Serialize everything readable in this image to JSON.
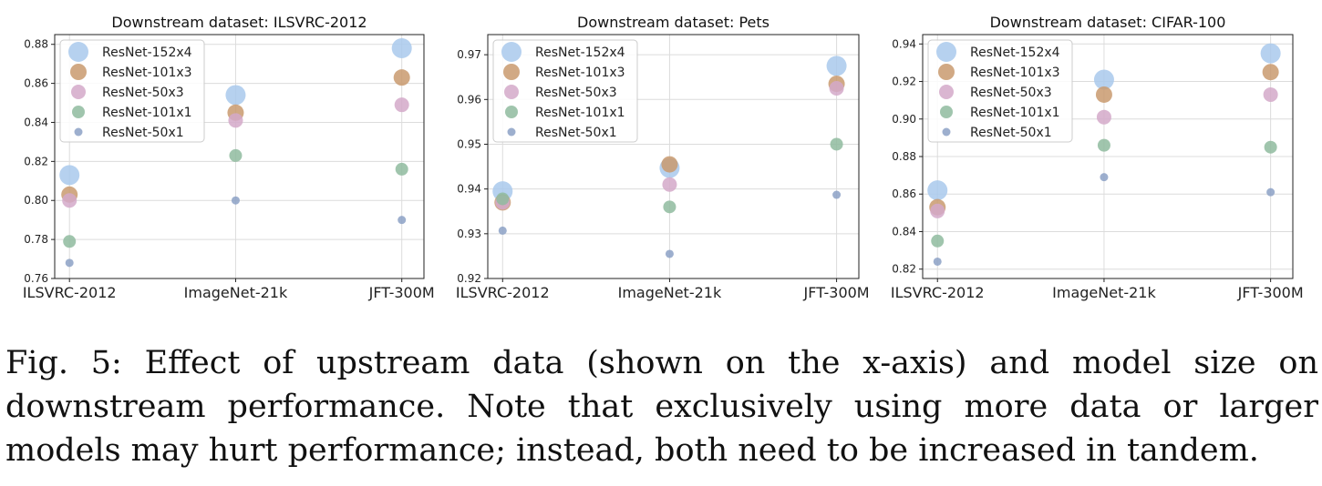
{
  "caption": "Fig. 5: Effect of upstream data (shown on the x-axis) and model size on downstream performance. Note that exclusively using more data or larger models may hurt performance; instead, both need to be increased in tandem.",
  "colors": {
    "ResNet-152x4": "#a9c9ec",
    "ResNet-101x3": "#c99a6e",
    "ResNet-50x3": "#d4a9c9",
    "ResNet-101x1": "#8fbb9f",
    "ResNet-50x1": "#8ca1c6"
  },
  "chart_data": [
    {
      "type": "scatter",
      "title": "Downstream dataset: ILSVRC-2012",
      "categories": [
        "ILSVRC-2012",
        "ImageNet-21k",
        "JFT-300M"
      ],
      "ylim": [
        0.76,
        0.885
      ],
      "yticks": [
        "0.76",
        "0.78",
        "0.80",
        "0.82",
        "0.84",
        "0.86",
        "0.88"
      ],
      "grid": true,
      "legend_position": "top-left",
      "series": [
        {
          "name": "ResNet-152x4",
          "values": [
            0.813,
            0.854,
            0.878
          ]
        },
        {
          "name": "ResNet-101x3",
          "values": [
            0.803,
            0.845,
            0.863
          ]
        },
        {
          "name": "ResNet-50x3",
          "values": [
            0.8,
            0.841,
            0.849
          ]
        },
        {
          "name": "ResNet-101x1",
          "values": [
            0.779,
            0.823,
            0.816
          ]
        },
        {
          "name": "ResNet-50x1",
          "values": [
            0.768,
            0.8,
            0.79
          ]
        }
      ]
    },
    {
      "type": "scatter",
      "title": "Downstream dataset: Pets",
      "categories": [
        "ILSVRC-2012",
        "ImageNet-21k",
        "JFT-300M"
      ],
      "ylim": [
        0.92,
        0.9745
      ],
      "yticks": [
        "0.92",
        "0.93",
        "0.94",
        "0.95",
        "0.96",
        "0.97"
      ],
      "grid": true,
      "legend_position": "top-left",
      "series": [
        {
          "name": "ResNet-152x4",
          "values": [
            0.9395,
            0.9447,
            0.9675
          ]
        },
        {
          "name": "ResNet-101x3",
          "values": [
            0.937,
            0.9455,
            0.9635
          ]
        },
        {
          "name": "ResNet-50x3",
          "values": [
            0.937,
            0.941,
            0.9625
          ]
        },
        {
          "name": "ResNet-101x1",
          "values": [
            0.9378,
            0.936,
            0.95
          ]
        },
        {
          "name": "ResNet-50x1",
          "values": [
            0.9307,
            0.9255,
            0.9387
          ]
        }
      ]
    },
    {
      "type": "scatter",
      "title": "Downstream dataset: CIFAR-100",
      "categories": [
        "ILSVRC-2012",
        "ImageNet-21k",
        "JFT-300M"
      ],
      "ylim": [
        0.815,
        0.945
      ],
      "yticks": [
        "0.82",
        "0.84",
        "0.86",
        "0.88",
        "0.90",
        "0.92",
        "0.94"
      ],
      "grid": true,
      "legend_position": "top-left",
      "series": [
        {
          "name": "ResNet-152x4",
          "values": [
            0.862,
            0.921,
            0.935
          ]
        },
        {
          "name": "ResNet-101x3",
          "values": [
            0.853,
            0.913,
            0.925
          ]
        },
        {
          "name": "ResNet-50x3",
          "values": [
            0.851,
            0.901,
            0.913
          ]
        },
        {
          "name": "ResNet-101x1",
          "values": [
            0.835,
            0.886,
            0.885
          ]
        },
        {
          "name": "ResNet-50x1",
          "values": [
            0.824,
            0.869,
            0.861
          ]
        }
      ]
    }
  ]
}
